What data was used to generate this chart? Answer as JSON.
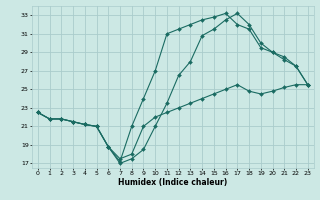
{
  "title": "",
  "xlabel": "Humidex (Indice chaleur)",
  "background_color": "#cce8e4",
  "grid_color": "#aacccc",
  "line_color": "#1a6b62",
  "xlim": [
    -0.5,
    23.5
  ],
  "ylim": [
    16.5,
    34.0
  ],
  "yticks": [
    17,
    19,
    21,
    23,
    25,
    27,
    29,
    31,
    33
  ],
  "xticks": [
    0,
    1,
    2,
    3,
    4,
    5,
    6,
    7,
    8,
    9,
    10,
    11,
    12,
    13,
    14,
    15,
    16,
    17,
    18,
    19,
    20,
    21,
    22,
    23
  ],
  "line1_x": [
    0,
    1,
    2,
    3,
    4,
    5,
    6,
    7,
    8,
    9,
    10,
    11,
    12,
    13,
    14,
    15,
    16,
    17,
    18,
    19,
    20,
    21,
    22,
    23
  ],
  "line1_y": [
    22.5,
    21.8,
    21.8,
    21.5,
    21.2,
    21.0,
    18.8,
    17.0,
    17.5,
    18.5,
    21.0,
    23.5,
    26.5,
    28.0,
    30.8,
    31.5,
    32.5,
    33.2,
    32.0,
    30.0,
    29.0,
    28.2,
    27.5,
    25.5
  ],
  "line2_x": [
    0,
    1,
    2,
    3,
    4,
    5,
    6,
    7,
    8,
    9,
    10,
    11,
    12,
    13,
    14,
    15,
    16,
    17,
    18,
    19,
    20,
    21,
    22,
    23
  ],
  "line2_y": [
    22.5,
    21.8,
    21.8,
    21.5,
    21.2,
    21.0,
    18.8,
    17.2,
    21.0,
    24.0,
    27.0,
    31.0,
    31.5,
    32.0,
    32.5,
    32.8,
    33.2,
    32.0,
    31.5,
    29.5,
    29.0,
    28.5,
    27.5,
    25.5
  ],
  "line3_x": [
    0,
    1,
    2,
    3,
    4,
    5,
    6,
    7,
    8,
    9,
    10,
    11,
    12,
    13,
    14,
    15,
    16,
    17,
    18,
    19,
    20,
    21,
    22,
    23
  ],
  "line3_y": [
    22.5,
    21.8,
    21.8,
    21.5,
    21.2,
    21.0,
    18.8,
    17.5,
    18.0,
    21.0,
    22.0,
    22.5,
    23.0,
    23.5,
    24.0,
    24.5,
    25.0,
    25.5,
    24.8,
    24.5,
    24.8,
    25.2,
    25.5,
    25.5
  ],
  "figsize": [
    3.2,
    2.0
  ],
  "dpi": 100
}
